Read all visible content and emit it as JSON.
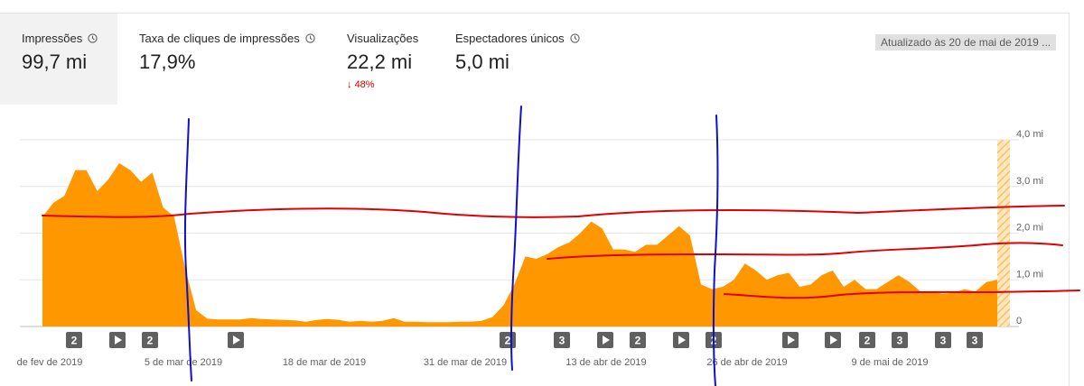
{
  "metrics": [
    {
      "label": "Impressões",
      "value": "99,7 mi",
      "delta": ""
    },
    {
      "label": "Taxa de cliques de impressões",
      "value": "17,9%",
      "delta": ""
    },
    {
      "label": "Visualizações",
      "value": "22,2 mi",
      "delta": "48%"
    },
    {
      "label": "Espectadores únicos",
      "value": "5,0 mi",
      "delta": ""
    }
  ],
  "updated_label": "Atualizado às 20 de mai de 2019 ...",
  "colors": {
    "area": "#ff9800",
    "delta": "#cc0000",
    "selected_bg": "#f2f2f2",
    "marker_bg": "#606060",
    "red_annotation": "#e00000",
    "blue_annotation": "#1010cc"
  },
  "chart_data": {
    "type": "area",
    "series": [
      {
        "values": [
          2.35,
          2.65,
          2.8,
          3.35,
          3.35,
          2.9,
          3.15,
          3.5,
          3.35,
          3.1,
          3.3,
          2.55,
          2.35,
          1.25,
          0.35,
          0.17,
          0.15,
          0.15,
          0.15,
          0.18,
          0.16,
          0.15,
          0.14,
          0.13,
          0.1,
          0.14,
          0.16,
          0.14,
          0.1,
          0.12,
          0.1,
          0.12,
          0.18,
          0.1,
          0.1,
          0.09,
          0.09,
          0.09,
          0.1,
          0.1,
          0.12,
          0.2,
          0.45,
          0.9,
          1.5,
          1.45,
          1.55,
          1.7,
          1.8,
          2.0,
          2.25,
          2.1,
          1.65,
          1.65,
          1.6,
          1.75,
          1.75,
          1.95,
          2.15,
          1.95,
          0.9,
          0.8,
          0.85,
          1.0,
          1.35,
          1.2,
          1.0,
          1.1,
          1.15,
          0.85,
          0.9,
          1.1,
          1.2,
          0.85,
          1.0,
          0.8,
          0.8,
          0.95,
          1.1,
          0.95,
          0.75,
          0.75,
          0.7,
          0.72,
          0.8,
          0.75,
          0.95,
          1.0
        ]
      }
    ],
    "x_tick_labels": [
      "de fev de 2019",
      "5 de mar de 2019",
      "18 de mar de 2019",
      "31 de mar de 2019",
      "13 de abr de 2019",
      "26 de abr de 2019",
      "9 de mai de 2019"
    ],
    "y_tick_labels": [
      "0",
      "1,0 mi",
      "2,0 mi",
      "3,0 mi",
      "4,0 mi"
    ],
    "ylim": [
      0,
      4
    ],
    "grid": true,
    "markers": [
      "2",
      "play",
      "2",
      "play",
      "2",
      "3",
      "play",
      "2",
      "play",
      "2",
      "play",
      "play",
      "2",
      "3",
      "3",
      "3"
    ]
  }
}
